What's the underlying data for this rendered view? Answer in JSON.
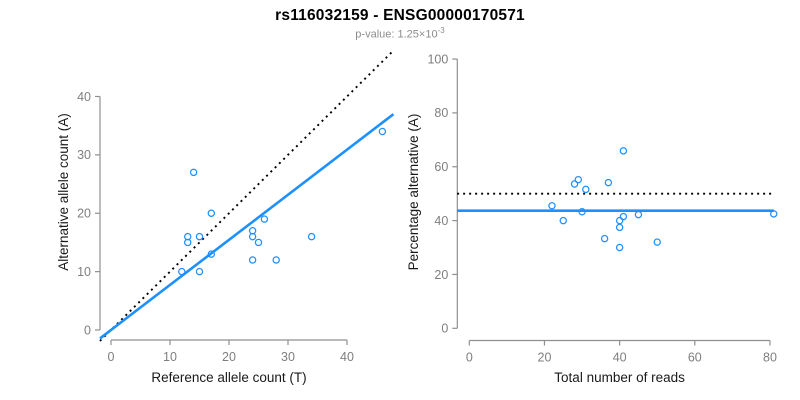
{
  "header": {
    "title": "rs116032159 - ENSG00000170571",
    "subtitle_base": "p-value: 1.25×10",
    "subtitle_exponent": "-3"
  },
  "colors": {
    "point_blue": "#1E90FF",
    "fit_line_blue": "#1E90FF",
    "reference_line_black": "#000000",
    "axis_gray": "#8f8f8f",
    "tick_label_gray": "#7f7f7f",
    "axis_title_black": "#1a1a1a",
    "subtitle_gray": "#8c8c8c"
  },
  "chart_data": [
    {
      "type": "scatter",
      "position": "left",
      "xlabel": "Reference allele count (T)",
      "ylabel": "Alternative allele count (A)",
      "xticks": [
        0,
        10,
        20,
        30,
        40
      ],
      "yticks": [
        0,
        10,
        20,
        30,
        40
      ],
      "xlim": [
        -1.87,
        47.87
      ],
      "ylim": [
        -1.87,
        47.87
      ],
      "grid": false,
      "legend": "none",
      "point_style": {
        "shape": "open-circle",
        "color": "#1E90FF"
      },
      "points": [
        [
          14,
          27
        ],
        [
          17,
          20
        ],
        [
          26,
          19
        ],
        [
          13,
          16
        ],
        [
          13,
          15
        ],
        [
          15,
          16
        ],
        [
          24,
          17
        ],
        [
          24,
          16
        ],
        [
          25,
          15
        ],
        [
          34,
          16
        ],
        [
          17,
          13
        ],
        [
          24,
          12
        ],
        [
          28,
          12
        ],
        [
          12,
          10
        ],
        [
          15,
          10
        ],
        [
          46,
          34
        ]
      ],
      "lines": [
        {
          "name": "identity-line",
          "style": "dotted",
          "color": "#000000",
          "x1": -1.87,
          "y1": -1.87,
          "x2": 47.87,
          "y2": 47.87
        },
        {
          "name": "fit-line",
          "style": "solid",
          "color": "#1E90FF",
          "x1": -1.87,
          "y1": -1.44,
          "x2": 47.87,
          "y2": 36.97
        }
      ]
    },
    {
      "type": "scatter",
      "position": "right",
      "xlabel": "Total number of reads",
      "ylabel": "Percentage alternative (A)",
      "xticks": [
        0,
        20,
        40,
        60,
        80
      ],
      "yticks": [
        0,
        20,
        40,
        60,
        80,
        100
      ],
      "xlim": [
        -3.24,
        84.24
      ],
      "ylim": [
        -4.16,
        104.16
      ],
      "grid": false,
      "legend": "none",
      "point_style": {
        "shape": "open-circle",
        "color": "#1E90FF"
      },
      "points": [
        [
          41,
          65.9
        ],
        [
          37,
          54.1
        ],
        [
          45,
          42.2
        ],
        [
          29,
          55.2
        ],
        [
          28,
          53.6
        ],
        [
          31,
          51.6
        ],
        [
          41,
          41.5
        ],
        [
          40,
          40
        ],
        [
          40,
          37.5
        ],
        [
          50,
          32
        ],
        [
          30,
          43.3
        ],
        [
          36,
          33.3
        ],
        [
          40,
          30
        ],
        [
          22,
          45.5
        ],
        [
          25,
          40
        ],
        [
          81,
          42.5
        ]
      ],
      "lines": [
        {
          "name": "expected-50pct-line",
          "style": "dotted",
          "color": "#000000",
          "x1": -3.24,
          "y1": 50,
          "x2": 81,
          "y2": 50
        },
        {
          "name": "mean-pct-line",
          "style": "solid",
          "color": "#1E90FF",
          "x1": -3.24,
          "y1": 43.7,
          "x2": 81,
          "y2": 43.7
        }
      ]
    }
  ]
}
